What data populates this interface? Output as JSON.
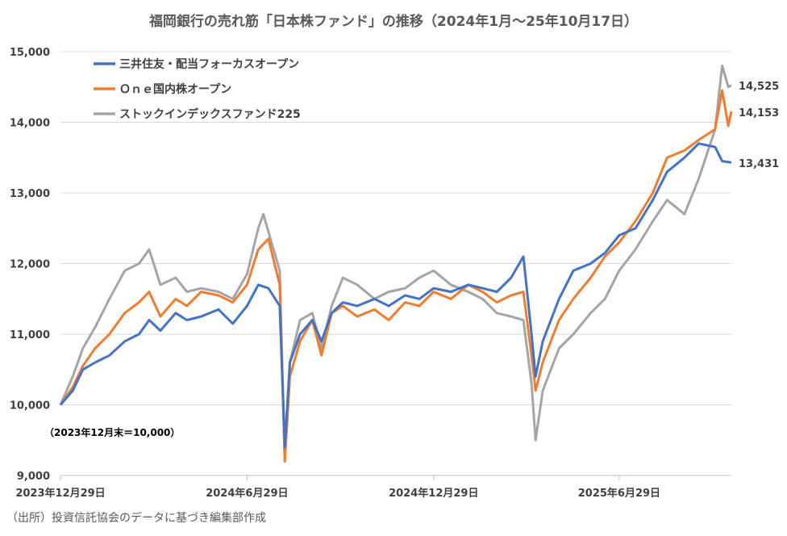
{
  "chart_data": {
    "type": "line",
    "title": "福岡銀行の売れ筋「日本株ファンド」の推移（2024年1月～25年10月17日）",
    "xlabel": "",
    "ylabel": "",
    "x_ticks": [
      "2023年12月29日",
      "2024年6月29日",
      "2024年12月29日",
      "2025年6月29日"
    ],
    "x_range": [
      "2023-12-29",
      "2025-10-17"
    ],
    "y_ticks": [
      "9,000",
      "10,000",
      "11,000",
      "12,000",
      "13,000",
      "14,000",
      "15,000"
    ],
    "ylim": [
      9000,
      15000
    ],
    "grid": "horizontal",
    "legend_position": "top-left",
    "note": "（2023年12月末＝10,000）",
    "source": "（出所）投資信託協会のデータに基づき編集部作成",
    "series": [
      {
        "name": "三井住友・配当フォーカスオープン",
        "color": "#4472C4",
        "end_label": "13,431",
        "points": [
          [
            "2023-12-29",
            10000
          ],
          [
            "2024-01-10",
            10200
          ],
          [
            "2024-01-20",
            10500
          ],
          [
            "2024-02-01",
            10600
          ],
          [
            "2024-02-15",
            10700
          ],
          [
            "2024-03-01",
            10900
          ],
          [
            "2024-03-15",
            11000
          ],
          [
            "2024-03-25",
            11200
          ],
          [
            "2024-04-05",
            11050
          ],
          [
            "2024-04-20",
            11300
          ],
          [
            "2024-05-01",
            11200
          ],
          [
            "2024-05-15",
            11250
          ],
          [
            "2024-06-01",
            11350
          ],
          [
            "2024-06-15",
            11150
          ],
          [
            "2024-06-29",
            11400
          ],
          [
            "2024-07-10",
            11700
          ],
          [
            "2024-07-20",
            11650
          ],
          [
            "2024-07-31",
            11400
          ],
          [
            "2024-08-05",
            9400
          ],
          [
            "2024-08-10",
            10600
          ],
          [
            "2024-08-20",
            11000
          ],
          [
            "2024-09-01",
            11200
          ],
          [
            "2024-09-10",
            10900
          ],
          [
            "2024-09-20",
            11300
          ],
          [
            "2024-10-01",
            11450
          ],
          [
            "2024-10-15",
            11400
          ],
          [
            "2024-11-01",
            11500
          ],
          [
            "2024-11-15",
            11400
          ],
          [
            "2024-12-01",
            11550
          ],
          [
            "2024-12-15",
            11500
          ],
          [
            "2024-12-29",
            11650
          ],
          [
            "2025-01-15",
            11600
          ],
          [
            "2025-02-01",
            11700
          ],
          [
            "2025-02-15",
            11650
          ],
          [
            "2025-03-01",
            11600
          ],
          [
            "2025-03-15",
            11800
          ],
          [
            "2025-03-27",
            12100
          ],
          [
            "2025-04-04",
            11000
          ],
          [
            "2025-04-08",
            10400
          ],
          [
            "2025-04-15",
            10900
          ],
          [
            "2025-05-01",
            11500
          ],
          [
            "2025-05-15",
            11900
          ],
          [
            "2025-06-01",
            12000
          ],
          [
            "2025-06-15",
            12150
          ],
          [
            "2025-06-29",
            12400
          ],
          [
            "2025-07-15",
            12500
          ],
          [
            "2025-08-01",
            12900
          ],
          [
            "2025-08-15",
            13300
          ],
          [
            "2025-09-01",
            13500
          ],
          [
            "2025-09-15",
            13700
          ],
          [
            "2025-10-01",
            13650
          ],
          [
            "2025-10-08",
            13450
          ],
          [
            "2025-10-17",
            13431
          ]
        ]
      },
      {
        "name": "Ｏｎｅ国内株オープン",
        "color": "#ED7D31",
        "end_label": "14,153",
        "points": [
          [
            "2023-12-29",
            10000
          ],
          [
            "2024-01-10",
            10250
          ],
          [
            "2024-01-20",
            10550
          ],
          [
            "2024-02-01",
            10800
          ],
          [
            "2024-02-15",
            11000
          ],
          [
            "2024-03-01",
            11300
          ],
          [
            "2024-03-15",
            11450
          ],
          [
            "2024-03-25",
            11600
          ],
          [
            "2024-04-05",
            11250
          ],
          [
            "2024-04-20",
            11500
          ],
          [
            "2024-05-01",
            11400
          ],
          [
            "2024-05-15",
            11600
          ],
          [
            "2024-06-01",
            11550
          ],
          [
            "2024-06-15",
            11450
          ],
          [
            "2024-06-29",
            11700
          ],
          [
            "2024-07-10",
            12200
          ],
          [
            "2024-07-20",
            12350
          ],
          [
            "2024-07-31",
            11700
          ],
          [
            "2024-08-05",
            9200
          ],
          [
            "2024-08-10",
            10400
          ],
          [
            "2024-08-20",
            10900
          ],
          [
            "2024-09-01",
            11200
          ],
          [
            "2024-09-10",
            10700
          ],
          [
            "2024-09-20",
            11300
          ],
          [
            "2024-10-01",
            11400
          ],
          [
            "2024-10-15",
            11250
          ],
          [
            "2024-11-01",
            11350
          ],
          [
            "2024-11-15",
            11200
          ],
          [
            "2024-12-01",
            11450
          ],
          [
            "2024-12-15",
            11400
          ],
          [
            "2024-12-29",
            11600
          ],
          [
            "2025-01-15",
            11500
          ],
          [
            "2025-02-01",
            11700
          ],
          [
            "2025-02-15",
            11600
          ],
          [
            "2025-03-01",
            11450
          ],
          [
            "2025-03-15",
            11550
          ],
          [
            "2025-03-27",
            11600
          ],
          [
            "2025-04-04",
            10700
          ],
          [
            "2025-04-08",
            10200
          ],
          [
            "2025-04-15",
            10600
          ],
          [
            "2025-05-01",
            11200
          ],
          [
            "2025-05-15",
            11500
          ],
          [
            "2025-06-01",
            11800
          ],
          [
            "2025-06-15",
            12100
          ],
          [
            "2025-06-29",
            12300
          ],
          [
            "2025-07-15",
            12600
          ],
          [
            "2025-08-01",
            13000
          ],
          [
            "2025-08-15",
            13500
          ],
          [
            "2025-09-01",
            13600
          ],
          [
            "2025-09-15",
            13750
          ],
          [
            "2025-10-01",
            13900
          ],
          [
            "2025-10-08",
            14450
          ],
          [
            "2025-10-14",
            13950
          ],
          [
            "2025-10-17",
            14153
          ]
        ]
      },
      {
        "name": "ストックインデックスファンド225",
        "color": "#A5A5A5",
        "end_label": "14,525",
        "points": [
          [
            "2023-12-29",
            10000
          ],
          [
            "2024-01-10",
            10400
          ],
          [
            "2024-01-20",
            10800
          ],
          [
            "2024-02-01",
            11100
          ],
          [
            "2024-02-15",
            11500
          ],
          [
            "2024-03-01",
            11900
          ],
          [
            "2024-03-15",
            12000
          ],
          [
            "2024-03-25",
            12200
          ],
          [
            "2024-04-05",
            11700
          ],
          [
            "2024-04-20",
            11800
          ],
          [
            "2024-05-01",
            11600
          ],
          [
            "2024-05-15",
            11650
          ],
          [
            "2024-06-01",
            11600
          ],
          [
            "2024-06-15",
            11500
          ],
          [
            "2024-06-29",
            11850
          ],
          [
            "2024-07-10",
            12500
          ],
          [
            "2024-07-15",
            12700
          ],
          [
            "2024-07-31",
            11900
          ],
          [
            "2024-08-05",
            9200
          ],
          [
            "2024-08-10",
            10600
          ],
          [
            "2024-08-20",
            11200
          ],
          [
            "2024-09-01",
            11300
          ],
          [
            "2024-09-10",
            10800
          ],
          [
            "2024-09-20",
            11400
          ],
          [
            "2024-10-01",
            11800
          ],
          [
            "2024-10-15",
            11700
          ],
          [
            "2024-11-01",
            11500
          ],
          [
            "2024-11-15",
            11600
          ],
          [
            "2024-12-01",
            11650
          ],
          [
            "2024-12-15",
            11800
          ],
          [
            "2024-12-29",
            11900
          ],
          [
            "2025-01-15",
            11700
          ],
          [
            "2025-02-01",
            11600
          ],
          [
            "2025-02-15",
            11500
          ],
          [
            "2025-03-01",
            11300
          ],
          [
            "2025-03-15",
            11250
          ],
          [
            "2025-03-27",
            11200
          ],
          [
            "2025-04-04",
            10300
          ],
          [
            "2025-04-08",
            9500
          ],
          [
            "2025-04-15",
            10200
          ],
          [
            "2025-05-01",
            10800
          ],
          [
            "2025-05-15",
            11000
          ],
          [
            "2025-06-01",
            11300
          ],
          [
            "2025-06-15",
            11500
          ],
          [
            "2025-06-29",
            11900
          ],
          [
            "2025-07-15",
            12200
          ],
          [
            "2025-08-01",
            12600
          ],
          [
            "2025-08-15",
            12900
          ],
          [
            "2025-09-01",
            12700
          ],
          [
            "2025-09-15",
            13200
          ],
          [
            "2025-10-01",
            13900
          ],
          [
            "2025-10-08",
            14800
          ],
          [
            "2025-10-14",
            14500
          ],
          [
            "2025-10-17",
            14525
          ]
        ]
      }
    ]
  }
}
